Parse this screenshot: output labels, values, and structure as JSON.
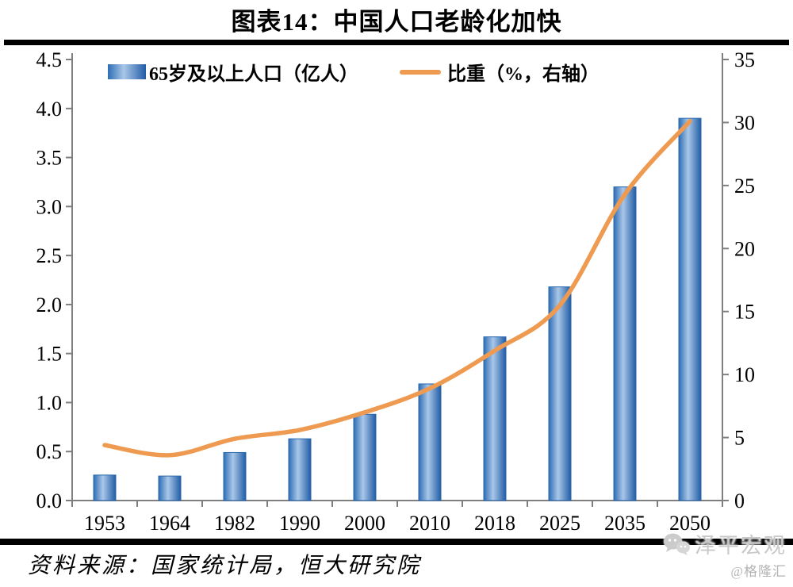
{
  "chart_data": {
    "type": "combo-bar-line",
    "title": "图表14：中国人口老龄化加快",
    "categories": [
      "1953",
      "1964",
      "1982",
      "1990",
      "2000",
      "2010",
      "2018",
      "2025",
      "2035",
      "2050"
    ],
    "series": [
      {
        "name": "65岁及以上人口（亿人）",
        "type": "bar",
        "axis": "left",
        "values": [
          0.26,
          0.25,
          0.49,
          0.63,
          0.88,
          1.19,
          1.67,
          2.18,
          3.2,
          3.9
        ]
      },
      {
        "name": "比重（%，右轴）",
        "type": "line",
        "axis": "right",
        "values": [
          4.4,
          3.6,
          4.9,
          5.6,
          7.0,
          8.9,
          11.9,
          15.5,
          24.3,
          30.1
        ]
      }
    ],
    "left_axis": {
      "min": 0,
      "max": 4.5,
      "tick_labels": [
        "0.0",
        "0.5",
        "1.0",
        "1.5",
        "2.0",
        "2.5",
        "3.0",
        "3.5",
        "4.0",
        "4.5"
      ]
    },
    "right_axis": {
      "min": 0,
      "max": 35,
      "tick_labels": [
        "0",
        "5",
        "10",
        "15",
        "20",
        "25",
        "30",
        "35"
      ]
    },
    "grid": false,
    "legend_position": "top"
  },
  "footer": {
    "source_text": "资料来源：国家统计局，恒大研究院",
    "watermark_text": "泽平宏观",
    "watermark_handle": "@格隆汇",
    "watermark_icon": "chat-bubbles-icon"
  },
  "colors": {
    "bar_edge": "#2E6DB4",
    "bar_center": "#A9C7E8",
    "bar_edge_dark": "#215CA6",
    "bar_stroke": "#2968AF",
    "line": "#EE9A51",
    "axis": "#7F7F7F",
    "text": "#000000",
    "divider": "#000000",
    "watermark": "#C9C9C9"
  }
}
